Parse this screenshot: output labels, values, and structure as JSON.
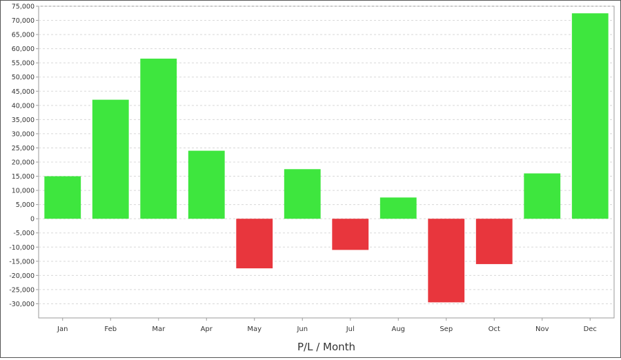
{
  "chart_data": {
    "type": "bar",
    "title": "",
    "xlabel": "P/L / Month",
    "ylabel": "",
    "categories": [
      "Jan",
      "Feb",
      "Mar",
      "Apr",
      "May",
      "Jun",
      "Jul",
      "Aug",
      "Sep",
      "Oct",
      "Nov",
      "Dec"
    ],
    "values": [
      15000,
      42000,
      56500,
      24000,
      -17500,
      17500,
      -11000,
      7500,
      -29500,
      -16000,
      16000,
      72500
    ],
    "ylim": [
      -35000,
      75000
    ],
    "yticks": [
      75000,
      70000,
      65000,
      60000,
      55000,
      50000,
      45000,
      40000,
      35000,
      30000,
      25000,
      20000,
      15000,
      10000,
      5000,
      0,
      -5000,
      -10000,
      -15000,
      -20000,
      -25000,
      -30000
    ],
    "ytick_labels": [
      "75,000",
      "70,000",
      "65,000",
      "60,000",
      "55,000",
      "50,000",
      "45,000",
      "40,000",
      "35,000",
      "30,000",
      "25,000",
      "20,000",
      "15,000",
      "10,000",
      "5,000",
      "0",
      "-5,000",
      "-10,000",
      "-15,000",
      "-20,000",
      "-25,000",
      "-30,000"
    ],
    "grid": true,
    "legend": "none",
    "colors": {
      "positive": "#3ee63e",
      "negative": "#e8363d",
      "grid": "#d8d8d8",
      "axis": "#9a9a9a",
      "text": "#333333"
    }
  }
}
